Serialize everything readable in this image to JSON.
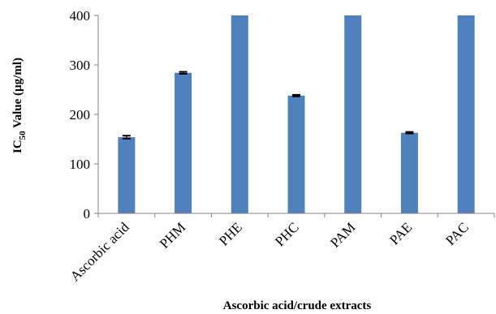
{
  "chart_data": {
    "type": "bar",
    "title": "",
    "xlabel": "Ascorbic acid/crude extracts",
    "ylabel": {
      "prefix": "IC",
      "subscript": "50",
      "suffix": " Value (µg/ml)"
    },
    "ylim": [
      0,
      400
    ],
    "yticks": [
      0,
      100,
      200,
      300,
      400
    ],
    "grid": false,
    "legend": "none",
    "categories": [
      "Ascorbic acid",
      "PHM",
      "PHE",
      "PHC",
      "PAM",
      "PAE",
      "PAC"
    ],
    "series": [
      {
        "values": [
          154,
          284,
          400,
          238,
          400,
          163,
          400
        ],
        "error": [
          3,
          2,
          0,
          1.5,
          0,
          1.5,
          0
        ],
        "color": "#4F81BD"
      }
    ],
    "error_bar_color": "#000000"
  }
}
